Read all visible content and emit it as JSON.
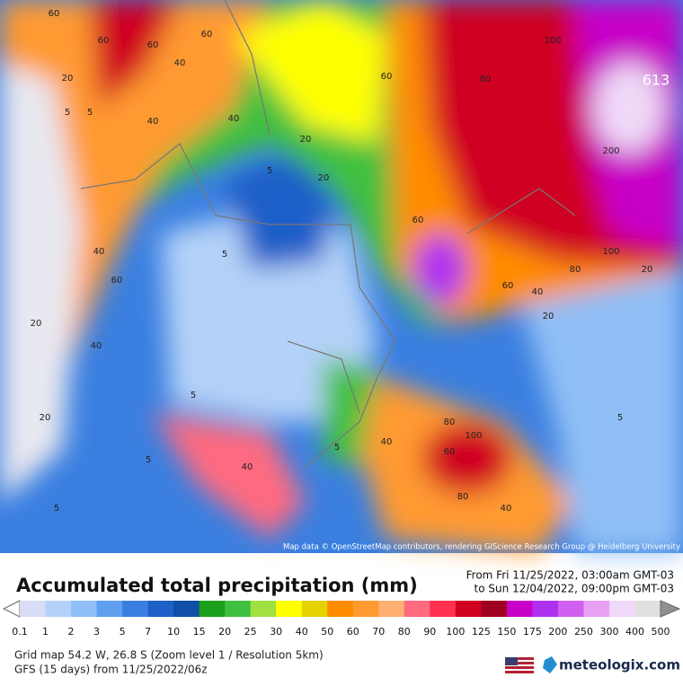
{
  "map": {
    "attribution": "Map data © OpenStreetMap contributors, rendering GIScience Research Group @ Heidelberg University",
    "labels": [
      "60",
      "60",
      "40",
      "60",
      "60",
      "20",
      "5",
      "40",
      "20",
      "20",
      "60",
      "5",
      "40",
      "5",
      "40",
      "5",
      "20",
      "40",
      "20",
      "60",
      "80",
      "100",
      "80",
      "613",
      "200",
      "100",
      "80",
      "60",
      "40",
      "20",
      "20",
      "5",
      "40",
      "60",
      "100",
      "80",
      "40",
      "5",
      "40",
      "5",
      "5",
      "5",
      "60"
    ]
  },
  "footer": {
    "title": "Accumulated total precipitation (mm)",
    "from": "From Fri 11/25/2022, 03:00am GMT-03",
    "to": "to Sun 12/04/2022, 09:00pm GMT-03",
    "grid": "Grid map 54.2 W, 26.8 S (Zoom level 1 / Resolution 5km)",
    "model": "GFS (15 days) from 11/25/2022/06z",
    "brand": "meteologix.com"
  },
  "colorbar": {
    "labels": [
      "0.1",
      "1",
      "2",
      "3",
      "5",
      "7",
      "10",
      "15",
      "20",
      "25",
      "30",
      "40",
      "50",
      "60",
      "70",
      "80",
      "90",
      "100",
      "125",
      "150",
      "175",
      "200",
      "250",
      "300",
      "400",
      "500"
    ],
    "colors": [
      "#d8dcf5",
      "#b4d2f8",
      "#8fbff6",
      "#5e9ff0",
      "#3a7fe0",
      "#1f5fc8",
      "#0f4fa8",
      "#1b9e1b",
      "#40c040",
      "#a0e040",
      "#ffff00",
      "#e6d200",
      "#ff8c00",
      "#ff9a30",
      "#ffb070",
      "#ff6a80",
      "#ff3050",
      "#d00020",
      "#a00020",
      "#c800c8",
      "#b030f0",
      "#d060f0",
      "#e8a0f5",
      "#f0d8f8",
      "#e0e0e0"
    ]
  }
}
